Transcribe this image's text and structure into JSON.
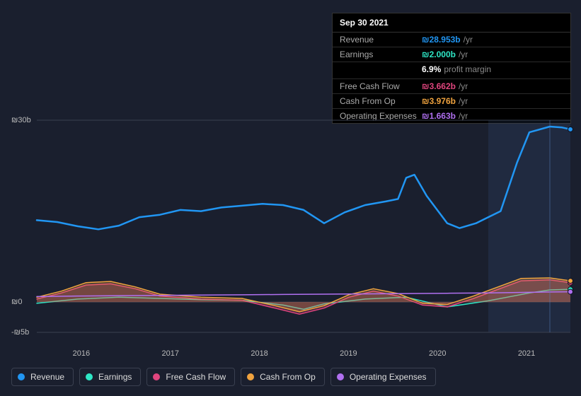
{
  "tooltip": {
    "date": "Sep 30 2021",
    "rows": [
      {
        "label": "Revenue",
        "value": "₪28.953b",
        "unit": "/yr",
        "color": "#2196f3"
      },
      {
        "label": "Earnings",
        "value": "₪2.000b",
        "unit": "/yr",
        "color": "#2ee6c5"
      },
      {
        "label": "Free Cash Flow",
        "value": "₪3.662b",
        "unit": "/yr",
        "color": "#e0457e"
      },
      {
        "label": "Cash From Op",
        "value": "₪3.976b",
        "unit": "/yr",
        "color": "#f0a33f"
      },
      {
        "label": "Operating Expenses",
        "value": "₪1.663b",
        "unit": "/yr",
        "color": "#b070f0"
      }
    ],
    "profit_margin": {
      "value": "6.9%",
      "label": "profit margin"
    }
  },
  "chart": {
    "type": "line-area",
    "background": "#1a1f2e",
    "grid_color": "#3a4050",
    "highlight_color": "rgba(80,120,200,0.12)",
    "ylim": [
      -5,
      30
    ],
    "yticks": [
      {
        "v": 30,
        "label": "₪30b"
      },
      {
        "v": 0,
        "label": "₪0"
      },
      {
        "v": -5,
        "label": "-₪5b"
      }
    ],
    "x_years": [
      "2016",
      "2017",
      "2018",
      "2019",
      "2020",
      "2021"
    ],
    "x_domain": [
      2015.5,
      2022.0
    ],
    "highlight_x": 2021.75,
    "series": [
      {
        "name": "Revenue",
        "color": "#2196f3",
        "fill": false,
        "width": 2.5,
        "points": [
          [
            2015.5,
            13.5
          ],
          [
            2015.75,
            13.2
          ],
          [
            2016.0,
            12.5
          ],
          [
            2016.25,
            12.0
          ],
          [
            2016.5,
            12.6
          ],
          [
            2016.75,
            14.0
          ],
          [
            2017.0,
            14.4
          ],
          [
            2017.25,
            15.2
          ],
          [
            2017.5,
            15.0
          ],
          [
            2017.75,
            15.6
          ],
          [
            2018.0,
            15.9
          ],
          [
            2018.25,
            16.2
          ],
          [
            2018.5,
            16.0
          ],
          [
            2018.75,
            15.2
          ],
          [
            2019.0,
            13.0
          ],
          [
            2019.25,
            14.8
          ],
          [
            2019.5,
            16.0
          ],
          [
            2019.75,
            16.6
          ],
          [
            2019.9,
            17.0
          ],
          [
            2020.0,
            20.5
          ],
          [
            2020.1,
            21.0
          ],
          [
            2020.25,
            17.5
          ],
          [
            2020.5,
            13.0
          ],
          [
            2020.65,
            12.2
          ],
          [
            2020.85,
            13.0
          ],
          [
            2021.0,
            14.0
          ],
          [
            2021.15,
            15.0
          ],
          [
            2021.35,
            23.0
          ],
          [
            2021.5,
            28.0
          ],
          [
            2021.75,
            28.95
          ],
          [
            2021.9,
            28.8
          ],
          [
            2022.0,
            28.5
          ]
        ]
      },
      {
        "name": "Earnings",
        "color": "#2ee6c5",
        "fill": false,
        "width": 1.5,
        "points": [
          [
            2015.5,
            -0.2
          ],
          [
            2016.0,
            0.5
          ],
          [
            2016.5,
            0.8
          ],
          [
            2017.0,
            0.6
          ],
          [
            2017.5,
            0.4
          ],
          [
            2018.0,
            0.3
          ],
          [
            2018.5,
            -0.5
          ],
          [
            2018.75,
            -1.2
          ],
          [
            2019.0,
            -0.3
          ],
          [
            2019.5,
            0.5
          ],
          [
            2020.0,
            0.8
          ],
          [
            2020.5,
            -0.8
          ],
          [
            2021.0,
            0.2
          ],
          [
            2021.5,
            1.5
          ],
          [
            2021.75,
            2.0
          ],
          [
            2022.0,
            2.1
          ]
        ]
      },
      {
        "name": "Free Cash Flow",
        "color": "#e0457e",
        "fill": true,
        "fill_opacity": 0.25,
        "width": 1.5,
        "points": [
          [
            2015.5,
            0.5
          ],
          [
            2015.8,
            1.5
          ],
          [
            2016.1,
            2.8
          ],
          [
            2016.4,
            3.0
          ],
          [
            2016.7,
            2.2
          ],
          [
            2017.0,
            1.0
          ],
          [
            2017.5,
            0.5
          ],
          [
            2018.0,
            0.3
          ],
          [
            2018.4,
            -1.0
          ],
          [
            2018.7,
            -2.0
          ],
          [
            2019.0,
            -1.0
          ],
          [
            2019.3,
            0.8
          ],
          [
            2019.6,
            1.8
          ],
          [
            2019.9,
            1.0
          ],
          [
            2020.2,
            -0.5
          ],
          [
            2020.5,
            -0.8
          ],
          [
            2020.8,
            0.5
          ],
          [
            2021.1,
            2.0
          ],
          [
            2021.4,
            3.5
          ],
          [
            2021.75,
            3.66
          ],
          [
            2022.0,
            3.2
          ]
        ]
      },
      {
        "name": "Cash From Op",
        "color": "#f0a33f",
        "fill": true,
        "fill_opacity": 0.25,
        "width": 1.5,
        "points": [
          [
            2015.5,
            0.8
          ],
          [
            2015.8,
            1.8
          ],
          [
            2016.1,
            3.2
          ],
          [
            2016.4,
            3.4
          ],
          [
            2016.7,
            2.5
          ],
          [
            2017.0,
            1.3
          ],
          [
            2017.5,
            0.8
          ],
          [
            2018.0,
            0.6
          ],
          [
            2018.4,
            -0.6
          ],
          [
            2018.7,
            -1.6
          ],
          [
            2019.0,
            -0.6
          ],
          [
            2019.3,
            1.2
          ],
          [
            2019.6,
            2.2
          ],
          [
            2019.9,
            1.4
          ],
          [
            2020.2,
            -0.2
          ],
          [
            2020.5,
            -0.4
          ],
          [
            2020.8,
            0.9
          ],
          [
            2021.1,
            2.4
          ],
          [
            2021.4,
            3.9
          ],
          [
            2021.75,
            3.98
          ],
          [
            2022.0,
            3.5
          ]
        ]
      },
      {
        "name": "Operating Expenses",
        "color": "#b070f0",
        "fill": false,
        "width": 1.5,
        "points": [
          [
            2015.5,
            0.9
          ],
          [
            2016.0,
            1.0
          ],
          [
            2016.5,
            1.05
          ],
          [
            2017.0,
            1.1
          ],
          [
            2017.5,
            1.15
          ],
          [
            2018.0,
            1.2
          ],
          [
            2018.5,
            1.25
          ],
          [
            2019.0,
            1.3
          ],
          [
            2019.5,
            1.35
          ],
          [
            2020.0,
            1.4
          ],
          [
            2020.5,
            1.45
          ],
          [
            2021.0,
            1.5
          ],
          [
            2021.5,
            1.6
          ],
          [
            2021.75,
            1.66
          ],
          [
            2022.0,
            1.7
          ]
        ]
      }
    ]
  },
  "legend": [
    {
      "label": "Revenue",
      "color": "#2196f3"
    },
    {
      "label": "Earnings",
      "color": "#2ee6c5"
    },
    {
      "label": "Free Cash Flow",
      "color": "#e0457e"
    },
    {
      "label": "Cash From Op",
      "color": "#f0a33f"
    },
    {
      "label": "Operating Expenses",
      "color": "#b070f0"
    }
  ]
}
